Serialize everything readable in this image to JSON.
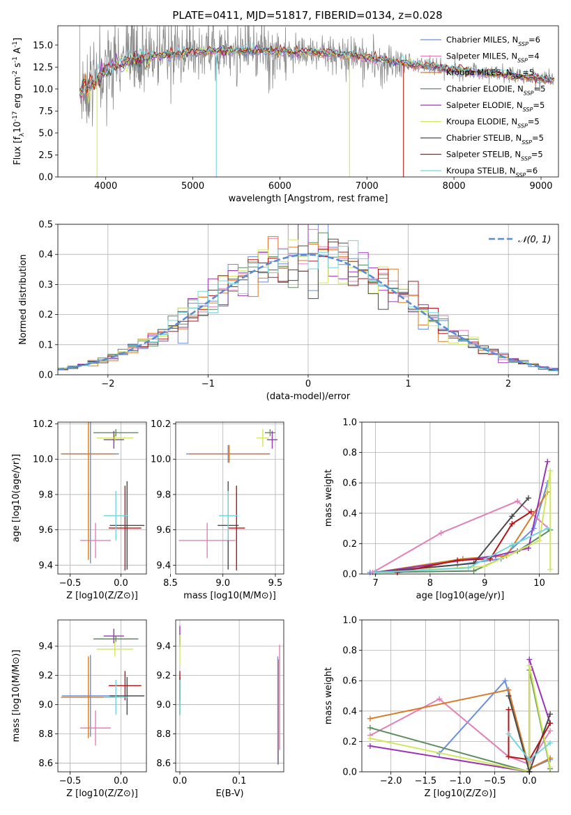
{
  "figure": {
    "title": "PLATE=0411, MJD=51817, FIBERID=0134, z=0.028"
  },
  "colors": {
    "Chabrier MILES": "#6a8ee0",
    "Salpeter MILES": "#e37fb7",
    "Kroupa MILES": "#d97a26",
    "Chabrier ELODIE": "#5b8c5b",
    "Salpeter ELODIE": "#9a33b8",
    "Kroupa ELODIE": "#cfe85a",
    "Chabrier STELIB": "#4a4a4a",
    "Salpeter STELIB": "#b01616",
    "Kroupa STELIB": "#72d6dd",
    "data": "#8a8a8a",
    "gaussian": "#5a8bd6"
  },
  "chart_data": [
    {
      "id": "spectrum",
      "type": "line",
      "title": "PLATE=0411, MJD=51817, FIBERID=0134, z=0.028",
      "xlabel": "wavelength [Angstrom, rest frame]",
      "ylabel": "Flux [f_λ10^-17 erg cm^-2 s^-1 A^-1]",
      "xlim": [
        3450,
        9200
      ],
      "ylim": [
        0,
        17.2
      ],
      "xticks": [
        4000,
        5000,
        6000,
        7000,
        8000,
        9000
      ],
      "yticks": [
        0.0,
        2.5,
        5.0,
        7.5,
        10.0,
        12.5,
        15.0
      ],
      "legend_position": "top-right",
      "legend": [
        {
          "model": "Chabrier MILES",
          "nssp": "6"
        },
        {
          "model": "Salpeter MILES",
          "nssp": "4"
        },
        {
          "model": "Kroupa MILES",
          "nssp": "5"
        },
        {
          "model": "Chabrier ELODIE",
          "nssp": "5"
        },
        {
          "model": "Salpeter ELODIE",
          "nssp": "5"
        },
        {
          "model": "Kroupa ELODIE",
          "nssp": "5"
        },
        {
          "model": "Chabrier STELIB",
          "nssp": "5"
        },
        {
          "model": "Salpeter STELIB",
          "nssp": "5"
        },
        {
          "model": "Kroupa STELIB",
          "nssp": "6"
        }
      ],
      "continuum": {
        "x": [
          3700,
          3800,
          3900,
          4000,
          4100,
          4200,
          4400,
          4600,
          4800,
          5000,
          5200,
          5500,
          5800,
          6000,
          6300,
          6600,
          6800,
          7000,
          7200,
          7400,
          7500,
          7700,
          8000,
          8300,
          8600,
          8900,
          9150
        ],
        "y": [
          9.5,
          10.5,
          11.2,
          12.0,
          12.6,
          13.0,
          13.5,
          13.8,
          14.0,
          14.2,
          14.3,
          14.4,
          14.4,
          14.3,
          14.1,
          14.0,
          13.9,
          13.6,
          13.3,
          13.0,
          12.8,
          12.6,
          12.2,
          11.9,
          11.6,
          11.3,
          11.0
        ]
      },
      "dropouts": [
        {
          "series": "Kroupa ELODIE",
          "x": 3900
        },
        {
          "series": "Kroupa STELIB",
          "x": 5270
        },
        {
          "series": "Kroupa ELODIE",
          "x": 6800
        },
        {
          "series": "Salpeter STELIB",
          "x": 7420
        }
      ]
    },
    {
      "id": "residuals",
      "type": "step",
      "xlabel": "(data-model)/error",
      "ylabel": "Normed distribution",
      "xlim": [
        -2.5,
        2.5
      ],
      "ylim": [
        0,
        0.5
      ],
      "xticks": [
        -2,
        -1,
        0,
        1,
        2
      ],
      "yticks": [
        0.0,
        0.1,
        0.2,
        0.3,
        0.4,
        0.5
      ],
      "bin_width": 0.1,
      "legend": [
        {
          "label": "𝒩(0, 1)",
          "style": "dashed"
        }
      ],
      "legend_position": "top-right",
      "gaussian": {
        "mu": 0,
        "sigma": 1
      }
    },
    {
      "id": "age-vs-Z",
      "type": "errorbar",
      "xlabel": "Z [log10(Z/Z⊙)]",
      "ylabel": "age [log10(age/yr)]",
      "xlim": [
        -0.62,
        0.25
      ],
      "ylim": [
        9.35,
        10.21
      ],
      "xticks": [
        -0.5,
        0.0
      ],
      "yticks": [
        9.4,
        9.6,
        9.8,
        10.0,
        10.2
      ],
      "points": [
        {
          "series": "Chabrier MILES",
          "x": -0.3,
          "xerr": 0.28,
          "y": 10.03,
          "yerr": 0.62
        },
        {
          "series": "Salpeter MILES",
          "x": -0.25,
          "xerr": 0.15,
          "y": 9.54,
          "yerr": 0.1
        },
        {
          "series": "Kroupa MILES",
          "x": -0.32,
          "xerr": 0.27,
          "y": 10.03,
          "yerr": 0.6
        },
        {
          "series": "Chabrier ELODIE",
          "x": -0.05,
          "xerr": 0.22,
          "y": 10.15,
          "yerr": 0.02
        },
        {
          "series": "Salpeter ELODIE",
          "x": -0.07,
          "xerr": 0.1,
          "y": 10.11,
          "yerr": 0.05
        },
        {
          "series": "Kroupa ELODIE",
          "x": -0.06,
          "xerr": 0.18,
          "y": 10.12,
          "yerr": 0.02
        },
        {
          "series": "Chabrier STELIB",
          "x": 0.06,
          "xerr": 0.17,
          "y": 9.625,
          "yerr": 0.25
        },
        {
          "series": "Salpeter STELIB",
          "x": 0.04,
          "xerr": 0.16,
          "y": 9.61,
          "yerr": 0.24
        },
        {
          "series": "Kroupa STELIB",
          "x": -0.05,
          "xerr": 0.12,
          "y": 9.68,
          "yerr": 0.14
        }
      ]
    },
    {
      "id": "age-vs-mass",
      "type": "errorbar",
      "xlabel": "mass [log10(M/M⊙)]",
      "xlim": [
        8.55,
        9.58
      ],
      "ylim": [
        9.35,
        10.21
      ],
      "xticks": [
        8.5,
        9.0,
        9.5
      ],
      "yticks": [
        9.4,
        9.6,
        9.8,
        10.0,
        10.2
      ],
      "points": [
        {
          "series": "Chabrier MILES",
          "x": 9.05,
          "xerr": 0.4,
          "y": 10.03,
          "yerr": 0.05
        },
        {
          "series": "Salpeter MILES",
          "x": 8.85,
          "xerr": 0.27,
          "y": 9.54,
          "yerr": 0.1
        },
        {
          "series": "Kroupa MILES",
          "x": 9.06,
          "xerr": 0.38,
          "y": 10.03,
          "yerr": 0.05
        },
        {
          "series": "Chabrier ELODIE",
          "x": 9.45,
          "xerr": 0.05,
          "y": 10.15,
          "yerr": 0.02
        },
        {
          "series": "Salpeter ELODIE",
          "x": 9.47,
          "xerr": 0.05,
          "y": 10.11,
          "yerr": 0.05
        },
        {
          "series": "Kroupa ELODIE",
          "x": 9.38,
          "xerr": 0.06,
          "y": 10.12,
          "yerr": 0.05
        },
        {
          "series": "Chabrier STELIB",
          "x": 9.05,
          "xerr": 0.1,
          "y": 9.625,
          "yerr": 0.25
        },
        {
          "series": "Salpeter STELIB",
          "x": 9.13,
          "xerr": 0.08,
          "y": 9.61,
          "yerr": 0.24
        },
        {
          "series": "Kroupa STELIB",
          "x": 9.05,
          "xerr": 0.09,
          "y": 9.68,
          "yerr": 0.14
        }
      ]
    },
    {
      "id": "massweight-vs-age",
      "type": "line",
      "xlabel": "age [log10(age/yr)]",
      "ylabel": "mass weight",
      "xlim": [
        6.75,
        10.35
      ],
      "ylim": [
        0,
        1.0
      ],
      "xticks": [
        7,
        8,
        9,
        10
      ],
      "yticks": [
        0.0,
        0.2,
        0.4,
        0.6,
        0.8,
        1.0
      ],
      "series": [
        {
          "name": "Chabrier MILES",
          "x": [
            6.9,
            8.5,
            9.3,
            9.9,
            10.15
          ],
          "y": [
            0.01,
            0.06,
            0.1,
            0.3,
            0.6
          ]
        },
        {
          "name": "Salpeter MILES",
          "x": [
            6.95,
            8.2,
            9.6,
            10.2
          ],
          "y": [
            0.01,
            0.27,
            0.48,
            0.29
          ]
        },
        {
          "name": "Kroupa MILES",
          "x": [
            7.0,
            8.6,
            9.4,
            10.15
          ],
          "y": [
            0.01,
            0.1,
            0.12,
            0.54
          ]
        },
        {
          "name": "Chabrier ELODIE",
          "x": [
            7.0,
            8.8,
            9.6,
            10.2
          ],
          "y": [
            0.01,
            0.02,
            0.15,
            0.29
          ]
        },
        {
          "name": "Salpeter ELODIE",
          "x": [
            7.0,
            9.2,
            9.8,
            10.15
          ],
          "y": [
            0.01,
            0.12,
            0.17,
            0.74
          ]
        },
        {
          "name": "Kroupa ELODIE",
          "x": [
            7.0,
            9.0,
            10.0,
            10.2,
            10.2
          ],
          "y": [
            0.01,
            0.05,
            0.22,
            0.68,
            0.03
          ]
        },
        {
          "name": "Chabrier STELIB",
          "x": [
            7.0,
            8.8,
            9.5,
            9.8
          ],
          "y": [
            0.01,
            0.07,
            0.38,
            0.5
          ]
        },
        {
          "name": "Salpeter STELIB",
          "x": [
            7.4,
            8.5,
            9.1,
            9.5,
            9.85
          ],
          "y": [
            0.01,
            0.09,
            0.1,
            0.33,
            0.41
          ]
        },
        {
          "name": "Kroupa STELIB",
          "x": [
            7.0,
            8.7,
            9.5,
            10.15
          ],
          "y": [
            0.01,
            0.04,
            0.19,
            0.3
          ]
        }
      ]
    },
    {
      "id": "mass-vs-Z",
      "type": "errorbar",
      "xlabel": "Z [log10(Z/Z⊙)]",
      "ylabel": "mass [log10(M/M⊙)]",
      "xlim": [
        -0.62,
        0.25
      ],
      "ylim": [
        8.54,
        9.58
      ],
      "xticks": [
        -0.5,
        0.0
      ],
      "yticks": [
        8.6,
        8.8,
        9.0,
        9.2,
        9.4
      ],
      "points": [
        {
          "series": "Chabrier MILES",
          "x": -0.3,
          "xerr": 0.28,
          "y": 9.06,
          "yerr": 0.28
        },
        {
          "series": "Salpeter MILES",
          "x": -0.25,
          "xerr": 0.15,
          "y": 8.84,
          "yerr": 0.12
        },
        {
          "series": "Kroupa MILES",
          "x": -0.32,
          "xerr": 0.27,
          "y": 9.05,
          "yerr": 0.28
        },
        {
          "series": "Chabrier ELODIE",
          "x": -0.05,
          "xerr": 0.22,
          "y": 9.45,
          "yerr": 0.02
        },
        {
          "series": "Salpeter ELODIE",
          "x": -0.07,
          "xerr": 0.1,
          "y": 9.47,
          "yerr": 0.05
        },
        {
          "series": "Kroupa ELODIE",
          "x": -0.06,
          "xerr": 0.18,
          "y": 9.38,
          "yerr": 0.05
        },
        {
          "series": "Chabrier STELIB",
          "x": 0.06,
          "xerr": 0.17,
          "y": 9.06,
          "yerr": 0.13
        },
        {
          "series": "Salpeter STELIB",
          "x": 0.04,
          "xerr": 0.16,
          "y": 9.13,
          "yerr": 0.1
        },
        {
          "series": "Kroupa STELIB",
          "x": -0.05,
          "xerr": 0.12,
          "y": 9.05,
          "yerr": 0.12
        }
      ]
    },
    {
      "id": "mass-vs-EBV",
      "type": "errorbar",
      "xlabel": "E(B-V)",
      "xlim": [
        -0.007,
        0.175
      ],
      "ylim": [
        8.54,
        9.58
      ],
      "xticks": [
        0.0,
        0.1
      ],
      "yticks": [
        8.6,
        8.8,
        9.0,
        9.2,
        9.4
      ],
      "points": [
        {
          "series": "Chabrier MILES",
          "x": 0.165,
          "xerr": 0,
          "y": 8.96,
          "yerr": 0.37
        },
        {
          "series": "Salpeter MILES",
          "x": 0.168,
          "xerr": 0,
          "y": 9.05,
          "yerr": 0.36
        },
        {
          "series": "Kroupa MILES",
          "x": 0.166,
          "xerr": 0,
          "y": 8.95,
          "yerr": 0.36
        },
        {
          "series": "Chabrier ELODIE",
          "x": 0.0,
          "xerr": 0,
          "y": 9.45,
          "yerr": 0.04
        },
        {
          "series": "Salpeter ELODIE",
          "x": 0.0,
          "xerr": 0,
          "y": 9.47,
          "yerr": 0.07
        },
        {
          "series": "Kroupa ELODIE",
          "x": 0.0,
          "xerr": 0,
          "y": 9.38,
          "yerr": 0.1
        },
        {
          "series": "Chabrier STELIB",
          "x": 0.0,
          "xerr": 0,
          "y": 9.06,
          "yerr": 0.13
        },
        {
          "series": "Salpeter STELIB",
          "x": 0.0,
          "xerr": 0,
          "y": 9.13,
          "yerr": 0.1
        },
        {
          "series": "Kroupa STELIB",
          "x": 0.0,
          "xerr": 0,
          "y": 9.05,
          "yerr": 0.12
        }
      ]
    },
    {
      "id": "massweight-vs-Z",
      "type": "line",
      "xlabel": "Z [log10(Z/Z⊙)]",
      "ylabel": "mass weight",
      "xlim": [
        -2.42,
        0.42
      ],
      "ylim": [
        0,
        1.0
      ],
      "xticks": [
        -2.0,
        -1.5,
        -1.0,
        -0.5,
        0.0
      ],
      "yticks": [
        0.0,
        0.2,
        0.4,
        0.6,
        0.8,
        1.0
      ],
      "series": [
        {
          "name": "Chabrier MILES",
          "x": [
            -1.3,
            -0.35,
            0.0,
            0.3
          ],
          "y": [
            0.12,
            0.6,
            0.02,
            0.08
          ]
        },
        {
          "name": "Salpeter MILES",
          "x": [
            -2.3,
            -1.3,
            -0.3,
            0.0,
            0.3
          ],
          "y": [
            0.24,
            0.48,
            0.1,
            0.05,
            0.27
          ]
        },
        {
          "name": "Kroupa MILES",
          "x": [
            -2.3,
            -0.3,
            0.0,
            0.3
          ],
          "y": [
            0.35,
            0.54,
            0.02,
            0.09
          ]
        },
        {
          "name": "Chabrier ELODIE",
          "x": [
            -2.3,
            0.0,
            0.0,
            0.3
          ],
          "y": [
            0.29,
            0.0,
            0.67,
            0.02
          ]
        },
        {
          "name": "Salpeter ELODIE",
          "x": [
            -2.3,
            0.0,
            0.0,
            0.3
          ],
          "y": [
            0.17,
            0.0,
            0.74,
            0.32
          ]
        },
        {
          "name": "Kroupa ELODIE",
          "x": [
            -2.3,
            0.0,
            0.0,
            0.3
          ],
          "y": [
            0.22,
            0.0,
            0.7,
            0.03
          ]
        },
        {
          "name": "Chabrier STELIB",
          "x": [
            -0.3,
            0.0,
            0.3
          ],
          "y": [
            0.5,
            0.0,
            0.38
          ]
        },
        {
          "name": "Salpeter STELIB",
          "x": [
            -0.3,
            -0.3,
            0.0,
            0.3
          ],
          "y": [
            0.41,
            0.1,
            0.08,
            0.32
          ]
        },
        {
          "name": "Kroupa STELIB",
          "x": [
            -0.3,
            0.0,
            0.3
          ],
          "y": [
            0.25,
            0.08,
            0.19
          ]
        }
      ]
    }
  ]
}
